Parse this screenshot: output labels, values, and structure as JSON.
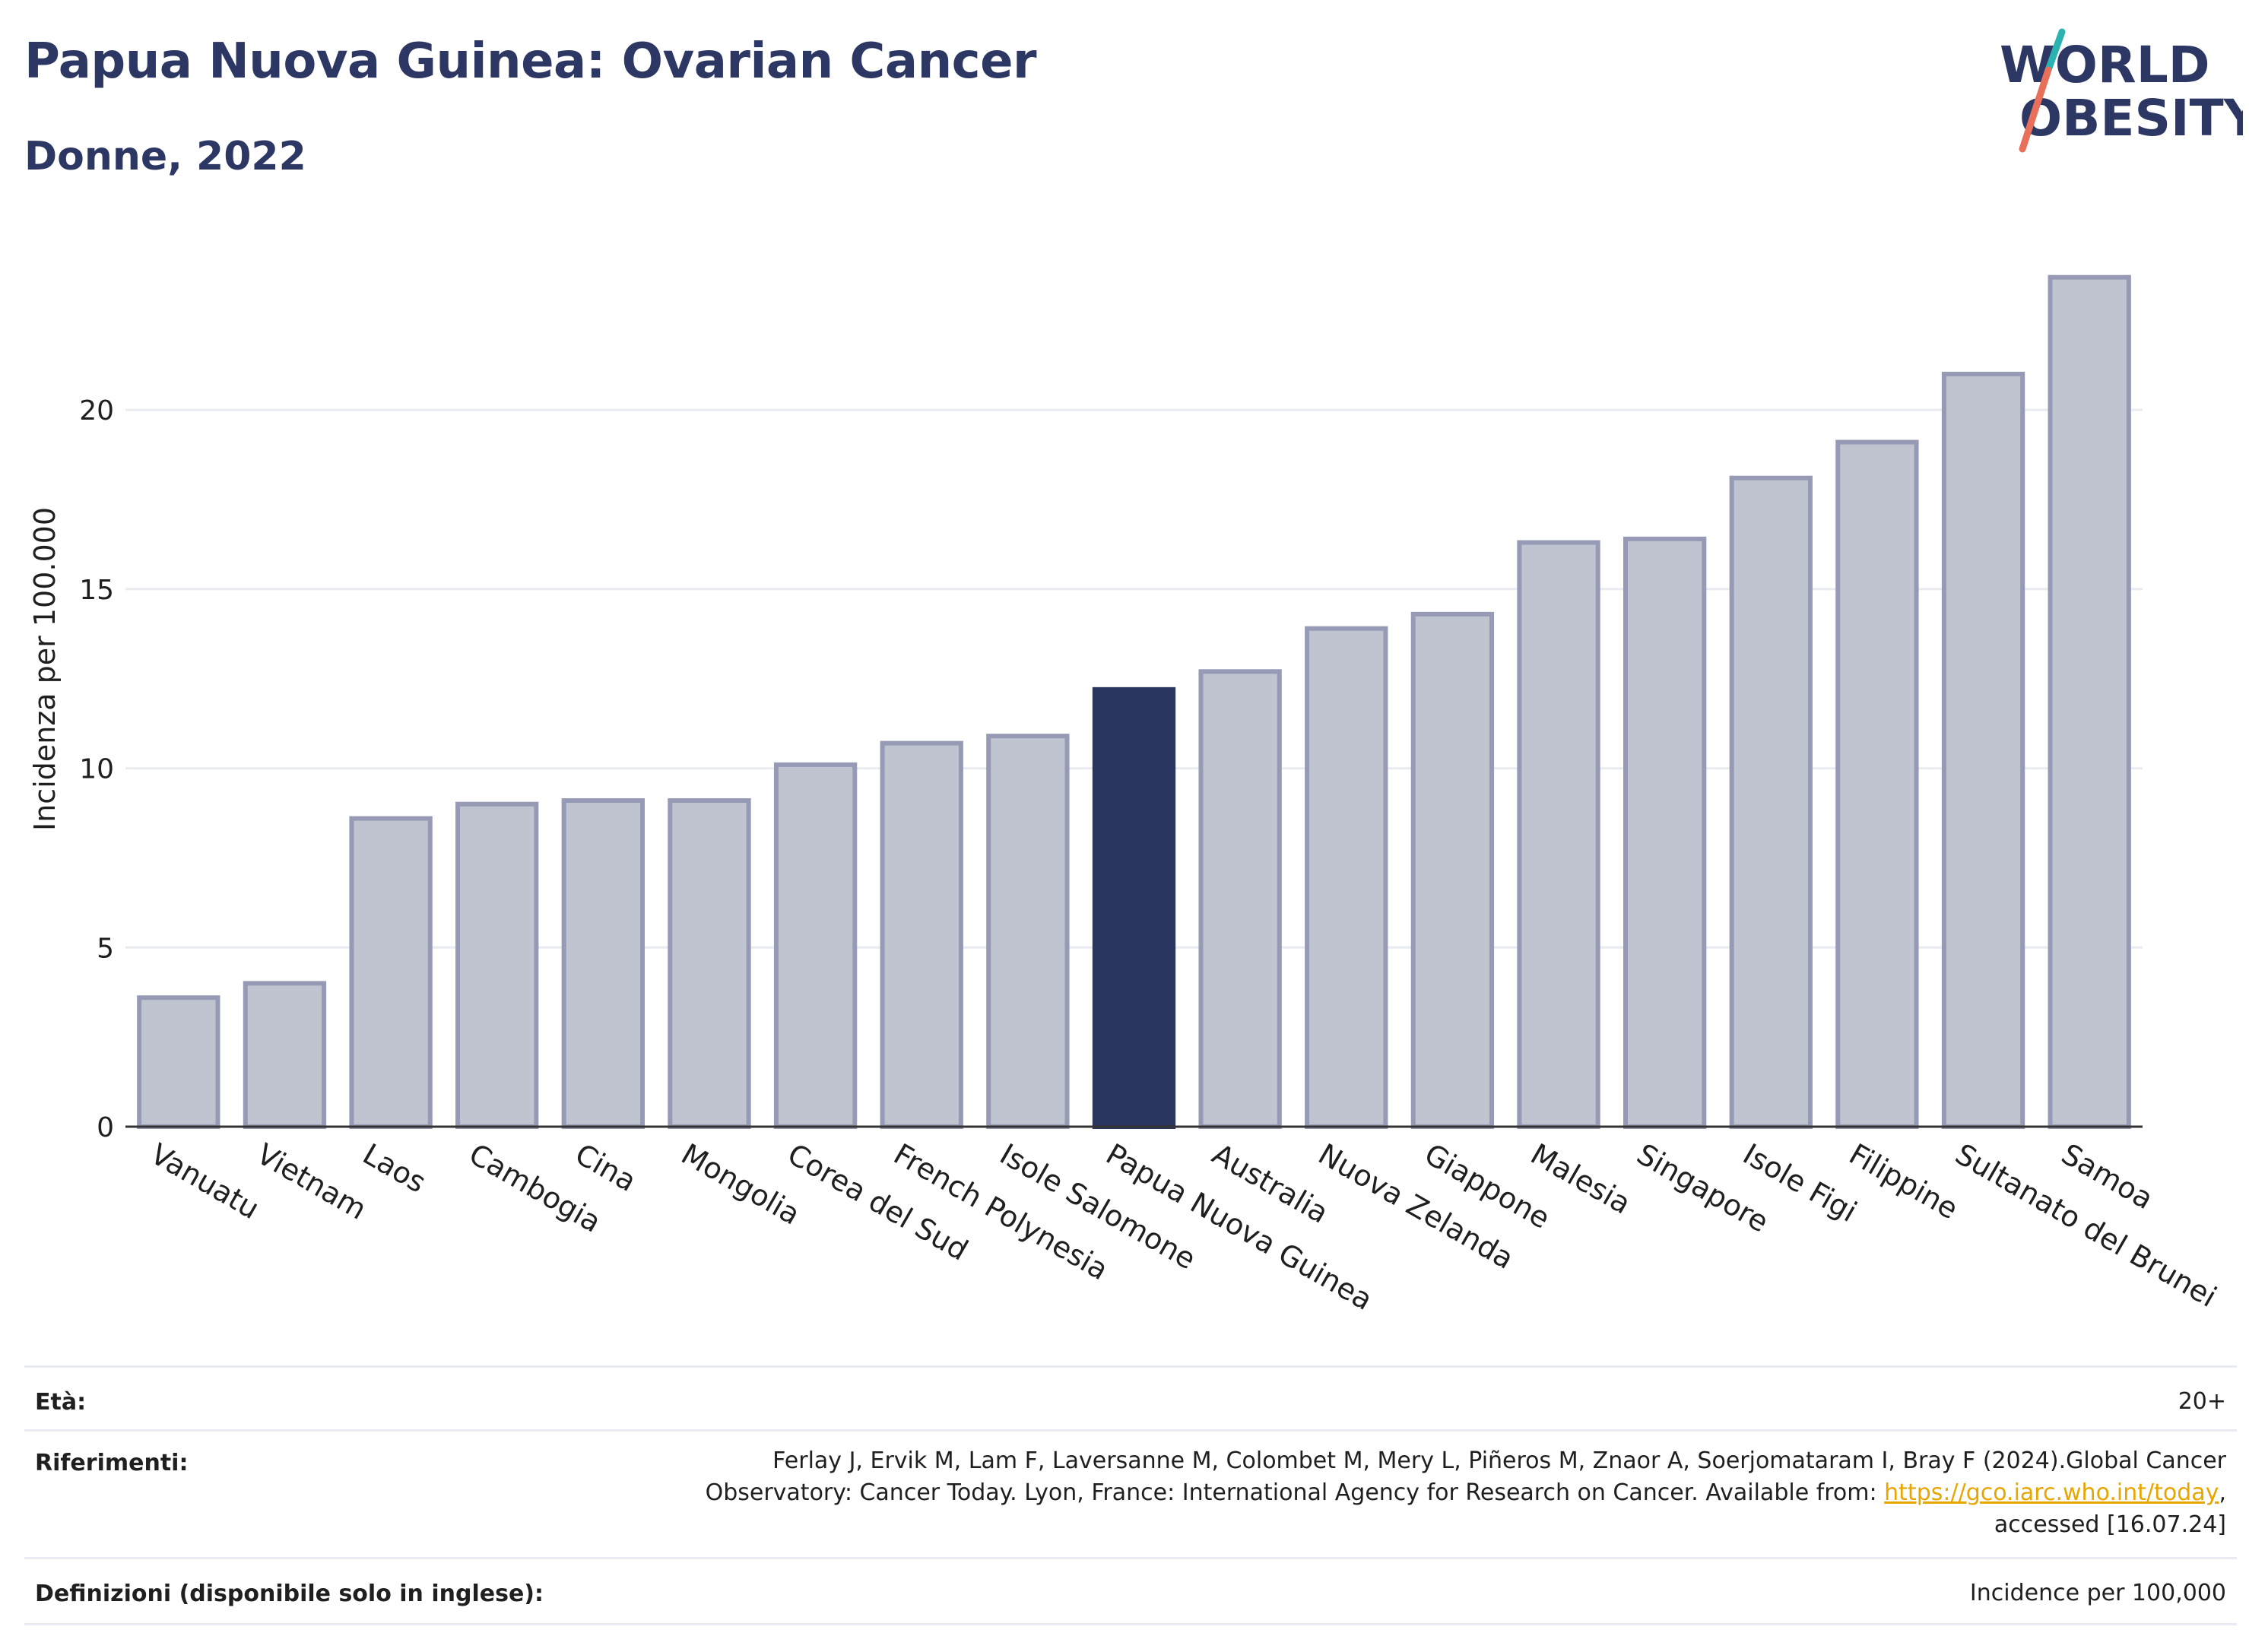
{
  "header": {
    "title": "Papua Nuova Guinea: Ovarian Cancer",
    "subtitle": "Donne, 2022",
    "logo_line1": "WORLD",
    "logo_line2": "OBESITY"
  },
  "chart_data": {
    "type": "bar",
    "ylabel": "Incidenza per 100.000",
    "ylim": [
      0,
      24.5
    ],
    "yticks": [
      0,
      5,
      10,
      15,
      20
    ],
    "grid": true,
    "highlight": "Papua Nuova Guinea",
    "categories": [
      "Vanuatu",
      "Vietnam",
      "Laos",
      "Cambogia",
      "Cina",
      "Mongolia",
      "Corea del Sud",
      "French Polynesia",
      "Isole Salomone",
      "Papua Nuova Guinea",
      "Australia",
      "Nuova Zelanda",
      "Giappone",
      "Malesia",
      "Singapore",
      "Isole Figi",
      "Filippine",
      "Sultanato del Brunei",
      "Samoa"
    ],
    "values": [
      3.6,
      4.0,
      8.6,
      9.0,
      9.1,
      9.1,
      10.1,
      10.7,
      10.9,
      12.2,
      12.7,
      13.9,
      14.3,
      16.3,
      16.4,
      18.1,
      19.1,
      21.0,
      23.7
    ],
    "colors": {
      "bar": "#c0c4d0",
      "bar_border": "#969ab5",
      "highlight": "#2b3660",
      "grid": "#e8ebf0",
      "axis": "#333333"
    }
  },
  "info": {
    "age_label": "Età:",
    "age_value": "20+",
    "ref_label": "Riferimenti:",
    "ref_line1": "Ferlay J, Ervik M, Lam F, Laversanne M, Colombet M, Mery L, Piñeros M, Znaor A, Soerjomataram I, Bray F (2024).Global Cancer",
    "ref_line2_pre": "Observatory: Cancer Today. Lyon, France: International Agency for Research on Cancer. Available from: ",
    "ref_link": "https://gco.iarc.who.int/today",
    "ref_line2_post": ",",
    "ref_line3": "accessed [16.07.24]",
    "def_label": "Definizioni (disponibile solo in inglese):",
    "def_value": "Incidence per 100,000"
  }
}
